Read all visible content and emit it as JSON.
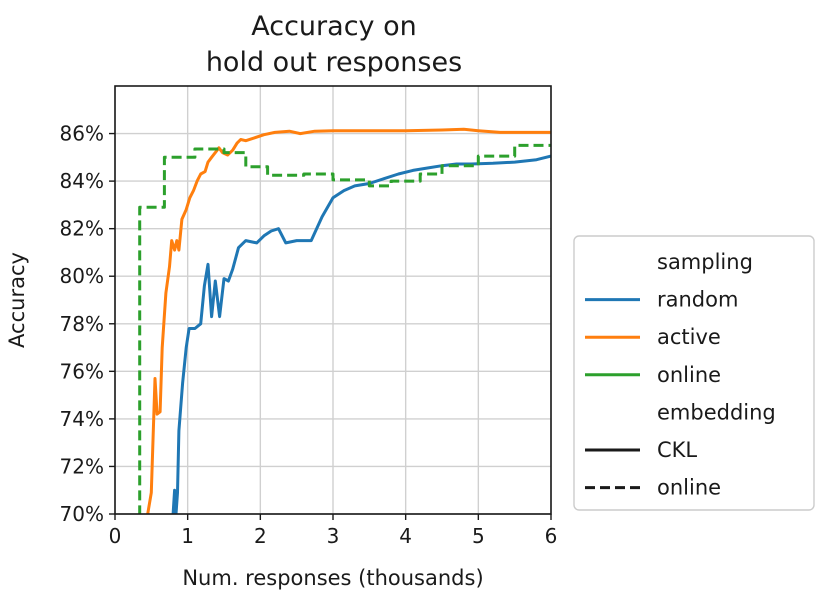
{
  "chart_data": {
    "type": "line",
    "title": [
      "Accuracy on",
      "hold out responses"
    ],
    "xlabel": "Num. responses (thousands)",
    "ylabel": "Accuracy",
    "xlim": [
      0,
      6
    ],
    "ylim": [
      70,
      88
    ],
    "xticks": [
      0,
      1,
      2,
      3,
      4,
      5,
      6
    ],
    "xtick_labels": [
      "0",
      "1",
      "2",
      "3",
      "4",
      "5",
      "6"
    ],
    "yticks": [
      70,
      72,
      74,
      76,
      78,
      80,
      82,
      84,
      86
    ],
    "ytick_labels": [
      "70%",
      "72%",
      "74%",
      "76%",
      "78%",
      "80%",
      "82%",
      "84%",
      "86%"
    ],
    "grid": true,
    "legend_position": "outside-right",
    "legend_sections": [
      {
        "header": "sampling",
        "entries": [
          "random",
          "active",
          "online"
        ]
      },
      {
        "header": "embedding",
        "entries": [
          "CKL",
          "online"
        ]
      }
    ],
    "series": [
      {
        "sampling": "random",
        "embedding": "CKL",
        "color": "#1f77b4",
        "dash": "solid",
        "points": [
          [
            0.8,
            70.0
          ],
          [
            0.82,
            71.0
          ],
          [
            0.84,
            70.0
          ],
          [
            0.86,
            70.9
          ],
          [
            0.88,
            73.5
          ],
          [
            0.93,
            75.5
          ],
          [
            0.98,
            77.0
          ],
          [
            1.02,
            77.8
          ],
          [
            1.1,
            77.8
          ],
          [
            1.18,
            78.0
          ],
          [
            1.23,
            79.6
          ],
          [
            1.28,
            80.5
          ],
          [
            1.33,
            78.3
          ],
          [
            1.38,
            79.8
          ],
          [
            1.44,
            78.3
          ],
          [
            1.5,
            79.9
          ],
          [
            1.56,
            79.8
          ],
          [
            1.62,
            80.3
          ],
          [
            1.7,
            81.2
          ],
          [
            1.8,
            81.5
          ],
          [
            1.95,
            81.4
          ],
          [
            2.05,
            81.7
          ],
          [
            2.15,
            81.9
          ],
          [
            2.25,
            82.0
          ],
          [
            2.35,
            81.4
          ],
          [
            2.5,
            81.5
          ],
          [
            2.7,
            81.5
          ],
          [
            2.85,
            82.5
          ],
          [
            3.0,
            83.3
          ],
          [
            3.15,
            83.6
          ],
          [
            3.3,
            83.8
          ],
          [
            3.5,
            83.9
          ],
          [
            3.7,
            84.1
          ],
          [
            3.9,
            84.3
          ],
          [
            4.1,
            84.45
          ],
          [
            4.3,
            84.55
          ],
          [
            4.5,
            84.65
          ],
          [
            4.7,
            84.72
          ],
          [
            4.9,
            84.72
          ],
          [
            5.2,
            84.75
          ],
          [
            5.5,
            84.8
          ],
          [
            5.8,
            84.9
          ],
          [
            6.0,
            85.05
          ]
        ]
      },
      {
        "sampling": "active",
        "embedding": "CKL",
        "color": "#ff7f0e",
        "dash": "solid",
        "points": [
          [
            0.45,
            70.0
          ],
          [
            0.5,
            70.9
          ],
          [
            0.55,
            75.7
          ],
          [
            0.58,
            74.2
          ],
          [
            0.62,
            74.3
          ],
          [
            0.65,
            77.0
          ],
          [
            0.7,
            79.3
          ],
          [
            0.75,
            80.4
          ],
          [
            0.78,
            81.5
          ],
          [
            0.82,
            81.1
          ],
          [
            0.85,
            81.5
          ],
          [
            0.88,
            81.1
          ],
          [
            0.92,
            82.4
          ],
          [
            0.98,
            82.8
          ],
          [
            1.03,
            83.3
          ],
          [
            1.08,
            83.6
          ],
          [
            1.13,
            84.0
          ],
          [
            1.18,
            84.3
          ],
          [
            1.24,
            84.4
          ],
          [
            1.28,
            84.8
          ],
          [
            1.33,
            85.0
          ],
          [
            1.38,
            85.2
          ],
          [
            1.43,
            85.4
          ],
          [
            1.48,
            85.2
          ],
          [
            1.55,
            85.1
          ],
          [
            1.62,
            85.3
          ],
          [
            1.68,
            85.6
          ],
          [
            1.73,
            85.75
          ],
          [
            1.8,
            85.7
          ],
          [
            1.9,
            85.8
          ],
          [
            2.05,
            85.95
          ],
          [
            2.2,
            86.05
          ],
          [
            2.4,
            86.1
          ],
          [
            2.55,
            86.0
          ],
          [
            2.75,
            86.1
          ],
          [
            3.0,
            86.12
          ],
          [
            3.5,
            86.12
          ],
          [
            4.0,
            86.12
          ],
          [
            4.5,
            86.15
          ],
          [
            4.8,
            86.18
          ],
          [
            5.0,
            86.12
          ],
          [
            5.3,
            86.05
          ],
          [
            5.6,
            86.05
          ],
          [
            6.0,
            86.05
          ]
        ]
      },
      {
        "sampling": "online",
        "embedding": "online",
        "color": "#2ca02c",
        "dash": "dashed",
        "points": [
          [
            0.32,
            70.0
          ],
          [
            0.34,
            70.0
          ],
          [
            0.34,
            82.9
          ],
          [
            0.6,
            82.9
          ],
          [
            0.68,
            82.9
          ],
          [
            0.68,
            85.0
          ],
          [
            1.0,
            85.0
          ],
          [
            1.1,
            85.0
          ],
          [
            1.1,
            85.35
          ],
          [
            1.5,
            85.35
          ],
          [
            1.5,
            85.2
          ],
          [
            1.8,
            85.2
          ],
          [
            1.8,
            84.6
          ],
          [
            2.1,
            84.6
          ],
          [
            2.1,
            84.25
          ],
          [
            2.6,
            84.25
          ],
          [
            2.6,
            84.3
          ],
          [
            3.0,
            84.3
          ],
          [
            3.0,
            84.05
          ],
          [
            3.5,
            84.05
          ],
          [
            3.5,
            83.8
          ],
          [
            3.8,
            83.8
          ],
          [
            3.8,
            84.0
          ],
          [
            4.2,
            84.0
          ],
          [
            4.2,
            84.3
          ],
          [
            4.5,
            84.3
          ],
          [
            4.5,
            84.65
          ],
          [
            5.0,
            84.65
          ],
          [
            5.0,
            85.05
          ],
          [
            5.5,
            85.05
          ],
          [
            5.5,
            85.5
          ],
          [
            6.0,
            85.5
          ]
        ]
      }
    ]
  }
}
